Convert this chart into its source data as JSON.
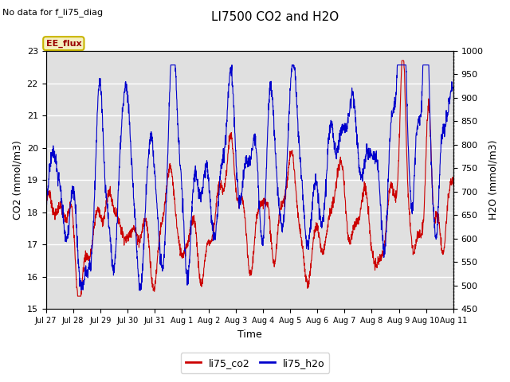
{
  "title": "LI7500 CO2 and H2O",
  "subtitle": "No data for f_li75_diag",
  "xlabel": "Time",
  "ylabel_left": "CO2 (mmol/m3)",
  "ylabel_right": "H2O (mmol/m3)",
  "ylim_left": [
    15.0,
    23.0
  ],
  "ylim_right": [
    450,
    1000
  ],
  "legend_label1": "li75_co2",
  "legend_label2": "li75_h2o",
  "color_co2": "#cc0000",
  "color_h2o": "#0000cc",
  "annotation": "EE_flux",
  "bg_color": "#e0e0e0",
  "x_tick_labels": [
    "Jul 27",
    "Jul 28",
    "Jul 29",
    "Jul 30",
    "Jul 31",
    "Aug 1",
    "Aug 2",
    "Aug 3",
    "Aug 4",
    "Aug 5",
    "Aug 6",
    "Aug 7",
    "Aug 8",
    "Aug 9",
    "Aug 10",
    "Aug 11"
  ],
  "n_points": 2000,
  "figsize": [
    6.4,
    4.8
  ],
  "dpi": 100
}
